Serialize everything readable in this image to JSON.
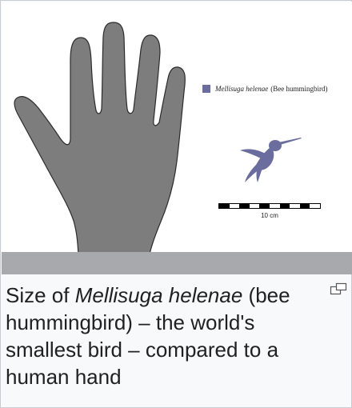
{
  "legend": {
    "swatch_color": "#6a6d9d",
    "species_italic": "Mellisuga helenae",
    "common_name": "(Bee hummingbird)"
  },
  "scale_bar": {
    "label": "10 cm"
  },
  "caption": {
    "prefix": "Size of ",
    "species": "Mellisuga helenae",
    "suffix": " (bee hummingbird) – the world's smallest bird – compared to a human hand"
  },
  "colors": {
    "hand_fill": "#7d7d7d",
    "bird_fill": "#6a6d9d",
    "ground": "#a7a9ac"
  },
  "icons": {
    "enlarge": "enlarge-icon"
  }
}
